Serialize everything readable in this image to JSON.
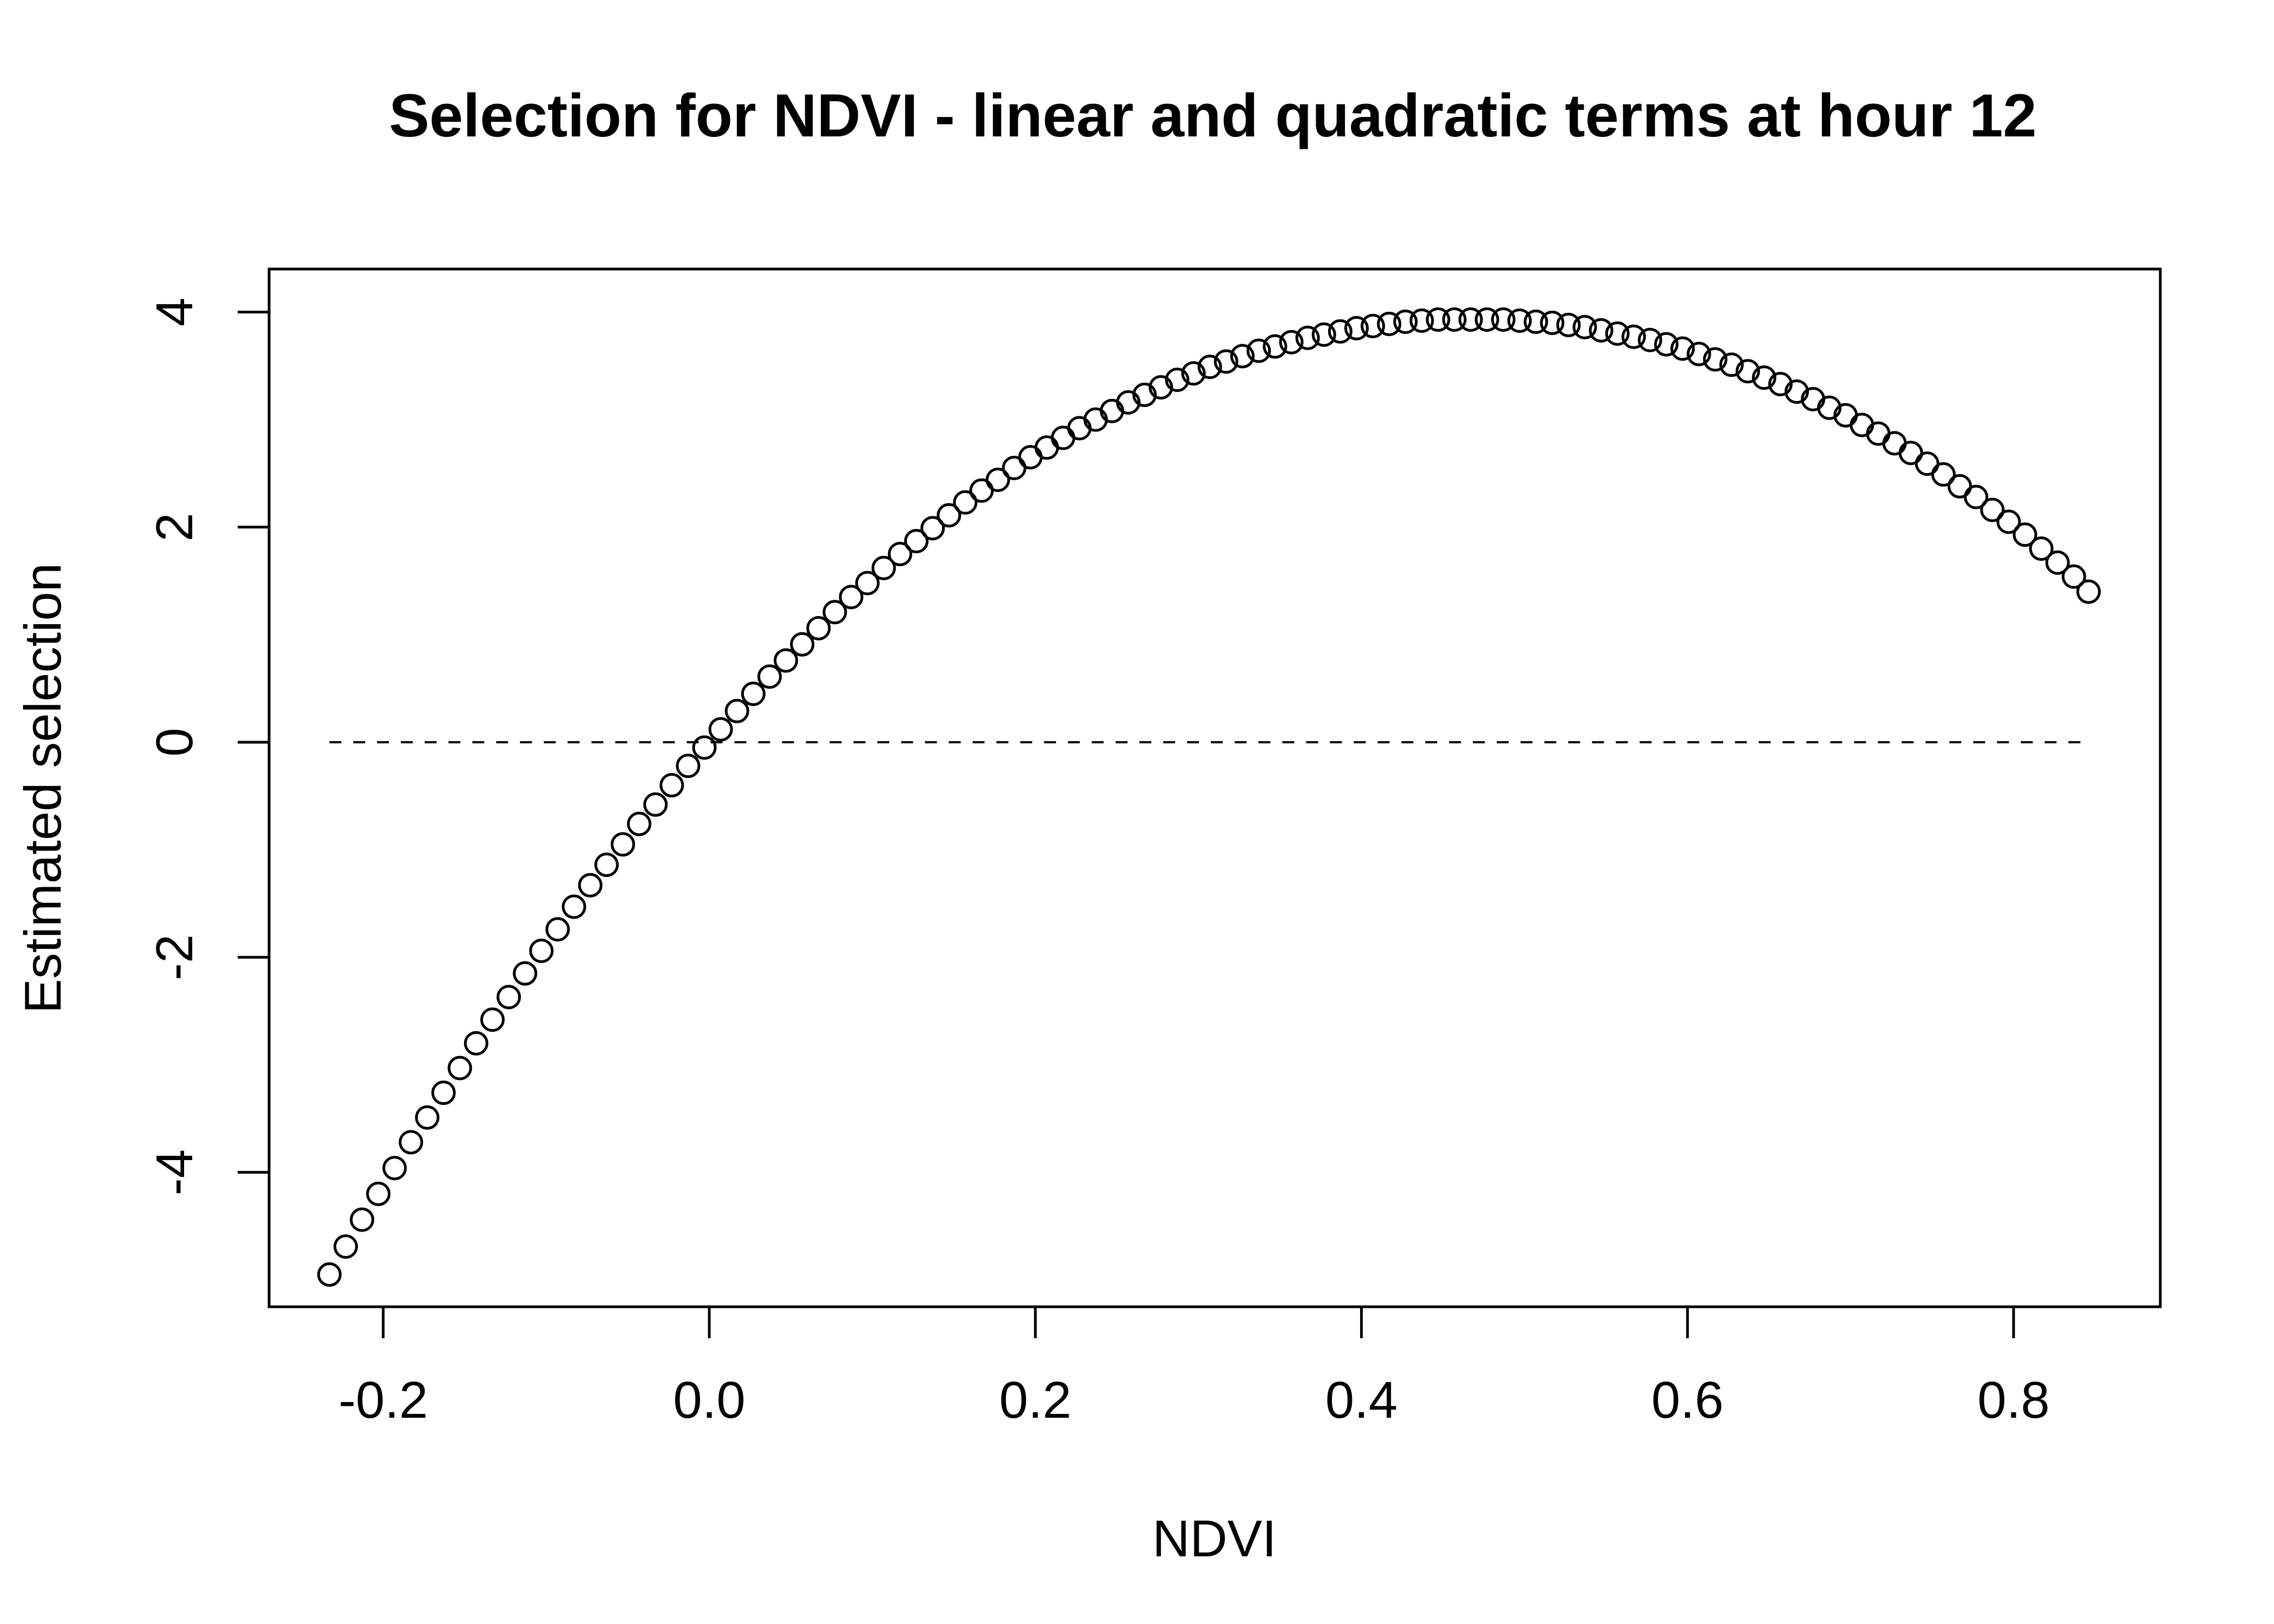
{
  "chart_data": {
    "type": "scatter",
    "title": "Selection for NDVI - linear and quadratic terms at hour 12",
    "xlabel": "NDVI",
    "ylabel": "Estimated selection",
    "xlim": [
      -0.27,
      0.89
    ],
    "ylim": [
      -5.25,
      4.4
    ],
    "x_ticks": [
      {
        "value": -0.2,
        "label": "-0.2"
      },
      {
        "value": 0.0,
        "label": "0.0"
      },
      {
        "value": 0.2,
        "label": "0.2"
      },
      {
        "value": 0.4,
        "label": "0.4"
      },
      {
        "value": 0.6,
        "label": "0.6"
      },
      {
        "value": 0.8,
        "label": "0.8"
      }
    ],
    "y_ticks": [
      {
        "value": -4,
        "label": "-4"
      },
      {
        "value": -2,
        "label": "-2"
      },
      {
        "value": 0,
        "label": "0"
      },
      {
        "value": 2,
        "label": "2"
      },
      {
        "value": 4,
        "label": "4"
      }
    ],
    "reference_line": {
      "y": 0,
      "x_from": -0.233,
      "x_to": 0.846,
      "style": "dashed"
    },
    "series": [
      {
        "marker": "open-circle",
        "color": "#000000",
        "points": [
          [
            -0.233,
            -4.95
          ],
          [
            -0.223,
            -4.69
          ],
          [
            -0.213,
            -4.44
          ],
          [
            -0.203,
            -4.2
          ],
          [
            -0.193,
            -3.96
          ],
          [
            -0.183,
            -3.72
          ],
          [
            -0.173,
            -3.49
          ],
          [
            -0.163,
            -3.26
          ],
          [
            -0.153,
            -3.03
          ],
          [
            -0.143,
            -2.8
          ],
          [
            -0.133,
            -2.58
          ],
          [
            -0.123,
            -2.37
          ],
          [
            -0.113,
            -2.15
          ],
          [
            -0.103,
            -1.94
          ],
          [
            -0.093,
            -1.74
          ],
          [
            -0.083,
            -1.53
          ],
          [
            -0.073,
            -1.33
          ],
          [
            -0.063,
            -1.14
          ],
          [
            -0.053,
            -0.95
          ],
          [
            -0.043,
            -0.76
          ],
          [
            -0.033,
            -0.58
          ],
          [
            -0.023,
            -0.4
          ],
          [
            -0.013,
            -0.22
          ],
          [
            -0.003,
            -0.05
          ],
          [
            0.007,
            0.12
          ],
          [
            0.017,
            0.29
          ],
          [
            0.027,
            0.45
          ],
          [
            0.037,
            0.61
          ],
          [
            0.047,
            0.76
          ],
          [
            0.057,
            0.91
          ],
          [
            0.067,
            1.06
          ],
          [
            0.077,
            1.21
          ],
          [
            0.087,
            1.35
          ],
          [
            0.097,
            1.48
          ],
          [
            0.107,
            1.62
          ],
          [
            0.117,
            1.75
          ],
          [
            0.127,
            1.87
          ],
          [
            0.137,
            1.99
          ],
          [
            0.147,
            2.11
          ],
          [
            0.157,
            2.23
          ],
          [
            0.167,
            2.34
          ],
          [
            0.177,
            2.44
          ],
          [
            0.187,
            2.55
          ],
          [
            0.197,
            2.65
          ],
          [
            0.207,
            2.74
          ],
          [
            0.217,
            2.83
          ],
          [
            0.227,
            2.92
          ],
          [
            0.237,
            3.0
          ],
          [
            0.247,
            3.08
          ],
          [
            0.257,
            3.16
          ],
          [
            0.267,
            3.23
          ],
          [
            0.277,
            3.3
          ],
          [
            0.287,
            3.37
          ],
          [
            0.297,
            3.43
          ],
          [
            0.307,
            3.49
          ],
          [
            0.317,
            3.54
          ],
          [
            0.327,
            3.59
          ],
          [
            0.337,
            3.64
          ],
          [
            0.347,
            3.68
          ],
          [
            0.357,
            3.72
          ],
          [
            0.367,
            3.76
          ],
          [
            0.377,
            3.79
          ],
          [
            0.387,
            3.82
          ],
          [
            0.397,
            3.85
          ],
          [
            0.407,
            3.87
          ],
          [
            0.417,
            3.89
          ],
          [
            0.427,
            3.91
          ],
          [
            0.437,
            3.92
          ],
          [
            0.447,
            3.93
          ],
          [
            0.457,
            3.93
          ],
          [
            0.467,
            3.93
          ],
          [
            0.477,
            3.93
          ],
          [
            0.487,
            3.93
          ],
          [
            0.497,
            3.92
          ],
          [
            0.507,
            3.91
          ],
          [
            0.517,
            3.9
          ],
          [
            0.527,
            3.88
          ],
          [
            0.537,
            3.86
          ],
          [
            0.547,
            3.83
          ],
          [
            0.557,
            3.8
          ],
          [
            0.567,
            3.77
          ],
          [
            0.577,
            3.74
          ],
          [
            0.587,
            3.7
          ],
          [
            0.597,
            3.66
          ],
          [
            0.607,
            3.61
          ],
          [
            0.617,
            3.56
          ],
          [
            0.627,
            3.51
          ],
          [
            0.637,
            3.45
          ],
          [
            0.647,
            3.39
          ],
          [
            0.657,
            3.33
          ],
          [
            0.667,
            3.26
          ],
          [
            0.677,
            3.19
          ],
          [
            0.687,
            3.11
          ],
          [
            0.697,
            3.04
          ],
          [
            0.707,
            2.95
          ],
          [
            0.717,
            2.87
          ],
          [
            0.727,
            2.78
          ],
          [
            0.737,
            2.69
          ],
          [
            0.747,
            2.59
          ],
          [
            0.757,
            2.49
          ],
          [
            0.767,
            2.38
          ],
          [
            0.777,
            2.28
          ],
          [
            0.787,
            2.16
          ],
          [
            0.797,
            2.05
          ],
          [
            0.807,
            1.93
          ],
          [
            0.817,
            1.8
          ],
          [
            0.827,
            1.67
          ],
          [
            0.837,
            1.54
          ],
          [
            0.846,
            1.4
          ]
        ]
      }
    ],
    "grid": false,
    "legend": "none"
  }
}
